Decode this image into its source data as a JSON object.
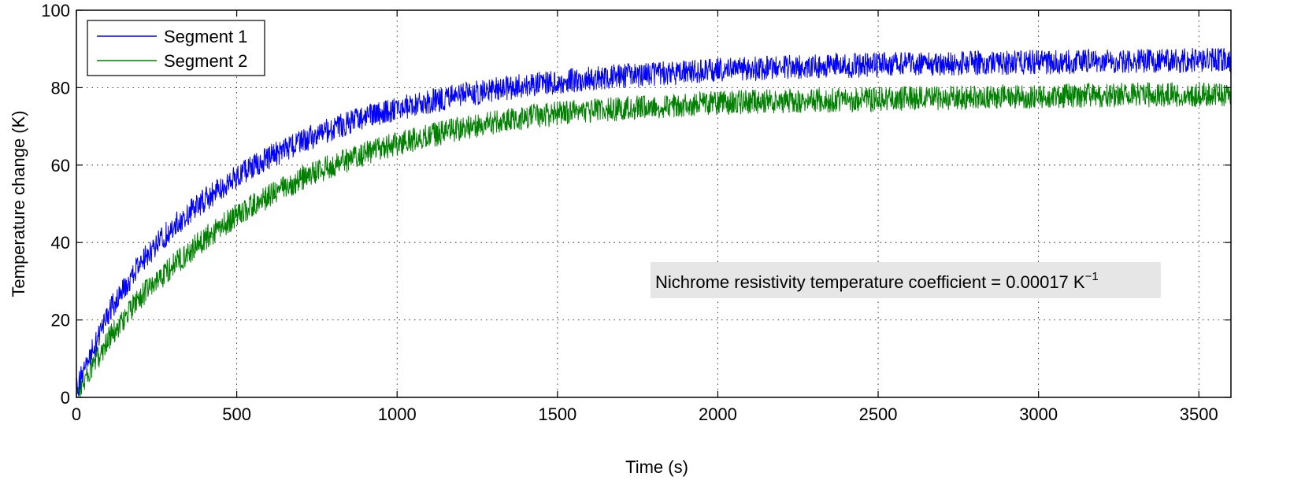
{
  "chart_data": {
    "type": "line",
    "title": "",
    "xlabel": "Time (s)",
    "ylabel": "Temperature change (K)",
    "xlim": [
      0,
      3600
    ],
    "ylim": [
      0,
      100
    ],
    "x_ticks": [
      0,
      500,
      1000,
      1500,
      2000,
      2500,
      3000,
      3500
    ],
    "y_ticks": [
      0,
      20,
      40,
      60,
      80,
      100
    ],
    "grid": "dotted",
    "legend_position": "top-left",
    "x": [
      0,
      100,
      200,
      300,
      400,
      500,
      600,
      700,
      800,
      900,
      1000,
      1100,
      1200,
      1300,
      1400,
      1500,
      1600,
      1700,
      1800,
      1900,
      2000,
      2200,
      2400,
      2600,
      2800,
      3000,
      3200,
      3400,
      3600
    ],
    "series": [
      {
        "name": "Segment 1",
        "color": "#0000ff",
        "noise_amplitude": 2,
        "values": [
          2,
          22,
          35,
          44,
          51,
          57,
          62,
          66,
          69.5,
          72.5,
          74.5,
          76.5,
          78,
          79.5,
          80.5,
          81.5,
          82.3,
          83,
          83.5,
          84,
          84.5,
          85.2,
          85.7,
          86.1,
          86.4,
          86.6,
          86.8,
          87,
          87.1
        ]
      },
      {
        "name": "Segment 2",
        "color": "#008000",
        "noise_amplitude": 2,
        "values": [
          1,
          15,
          26,
          34,
          41,
          47,
          52,
          56.5,
          60,
          63,
          65.5,
          67.5,
          69.5,
          71,
          72.3,
          73.3,
          74,
          74.6,
          75.2,
          75.6,
          76,
          76.5,
          76.9,
          77.2,
          77.5,
          77.8,
          78,
          78.2,
          78.3
        ]
      }
    ],
    "annotation": {
      "text": "Nichrome resistivity temperature coefficient = 0.00017 K",
      "superscript": "−1",
      "background": "#e6e6e6",
      "position": "right-middle"
    }
  }
}
